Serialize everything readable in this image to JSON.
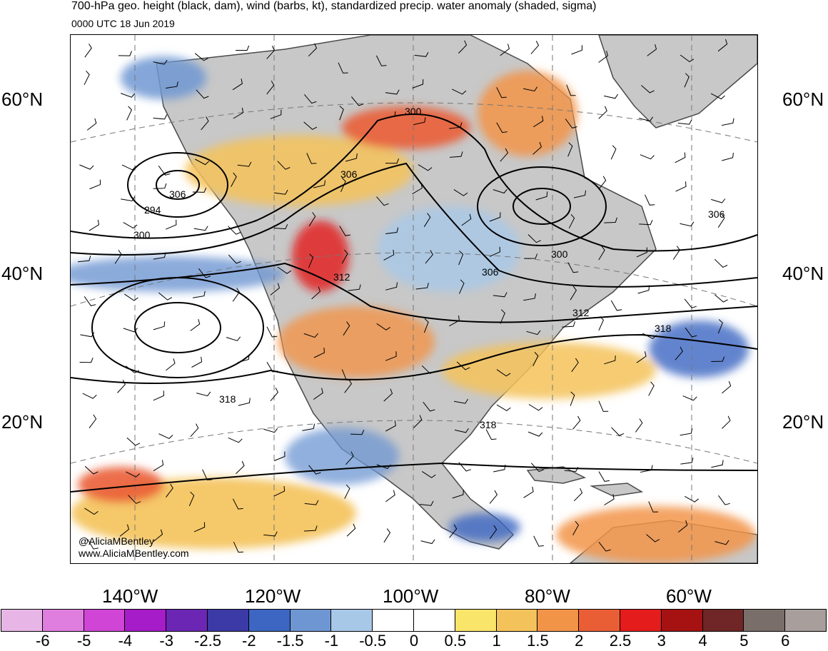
{
  "header": {
    "title": "700-hPa geo. height (black, dam), wind (barbs, kt), standardized precip. water anomaly (shaded, sigma)",
    "date": "0000 UTC 18 Jun 2019"
  },
  "axes": {
    "lat_left": [
      "60°N",
      "40°N",
      "20°N"
    ],
    "lat_right": [
      "60°N",
      "40°N",
      "20°N"
    ],
    "lon": [
      "140°W",
      "120°W",
      "100°W",
      "80°W",
      "60°W"
    ]
  },
  "contour_labels": [
    "300",
    "306",
    "294",
    "300",
    "312",
    "306",
    "300",
    "306",
    "312",
    "318",
    "318",
    "318",
    "306"
  ],
  "credits": {
    "handle": "@AliciaMBentley",
    "site": "www.AliciaMBentley.com"
  },
  "colorbar": {
    "labels": [
      "-6",
      "-5",
      "-4",
      "-3",
      "-2.5",
      "-2",
      "-1.5",
      "-1",
      "-0.5",
      "0",
      "0.5",
      "1",
      "1.5",
      "2",
      "2.5",
      "3",
      "4",
      "5",
      "6"
    ],
    "colors": [
      "#e8b6e6",
      "#e07ee0",
      "#d045d6",
      "#a61cc8",
      "#6c26b4",
      "#3c3aa6",
      "#3c66c2",
      "#6e96d2",
      "#a8c8e8",
      "#ffffff",
      "#ffffff",
      "#f9e56a",
      "#f4c25a",
      "#f29448",
      "#ea5e36",
      "#e41c1c",
      "#a61212",
      "#702626",
      "#7a6e6a",
      "#a89e9c"
    ]
  },
  "colors": {
    "land": "#c8c8c8",
    "coast": "#4a4a4a",
    "contour": "#000000"
  }
}
